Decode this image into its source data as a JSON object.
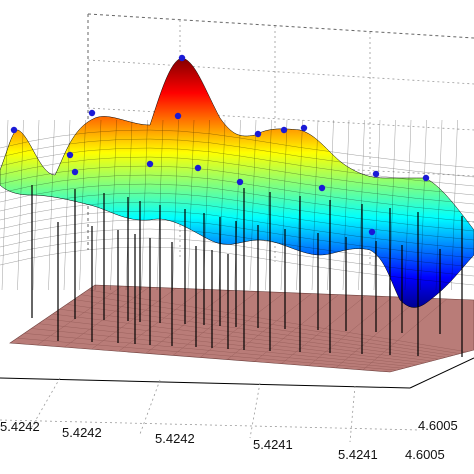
{
  "chart_data": {
    "type": "surface",
    "title": "",
    "xlabel": "",
    "ylabel": "",
    "zlabel": "",
    "grid": true,
    "colormap": "jet",
    "x_tick_labels": [
      "5.4242",
      "5.4242",
      "5.4242",
      "5.4241",
      "5.4241"
    ],
    "y_tick_labels": [
      "4.6005",
      "4.6005"
    ],
    "colors": {
      "floor_plane": "#b97c78",
      "stems": "#000000",
      "peak_markers": "#1a1ad6",
      "surface_mesh": "#000000",
      "grid_lines": "#9a9a9a"
    }
  }
}
